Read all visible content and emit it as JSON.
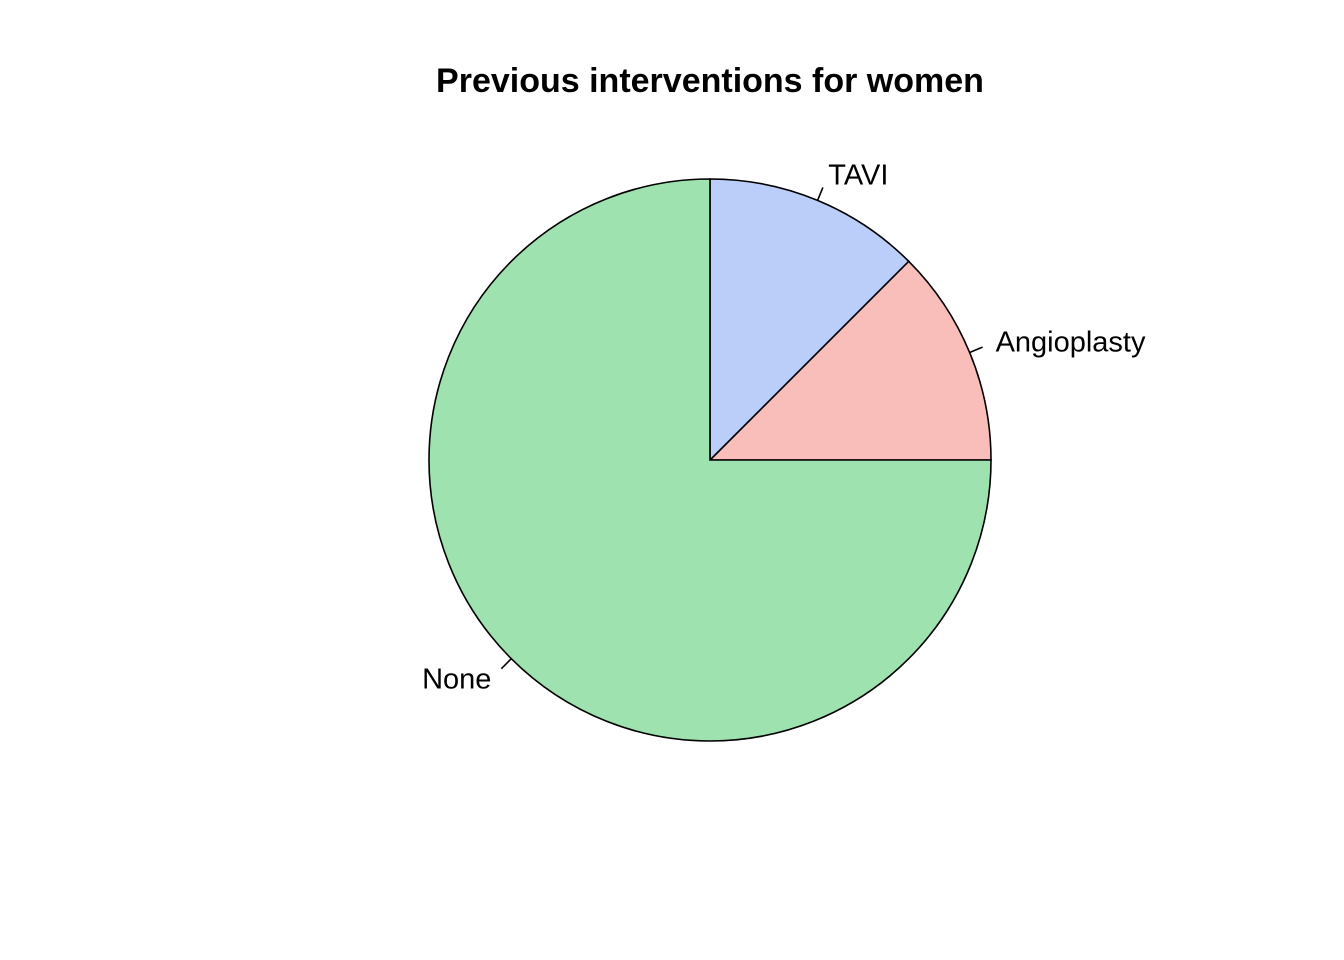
{
  "chart_data": {
    "type": "pie",
    "title": "Previous interventions for women",
    "categories": [
      "Angioplasty",
      "TAVI",
      "None"
    ],
    "values": [
      1,
      1,
      6
    ],
    "colors": [
      "#F9BEBA",
      "#BBCEF9",
      "#9EE2AF"
    ],
    "start_angle_deg": 0,
    "direction": "counterclockwise",
    "legend": "none"
  }
}
